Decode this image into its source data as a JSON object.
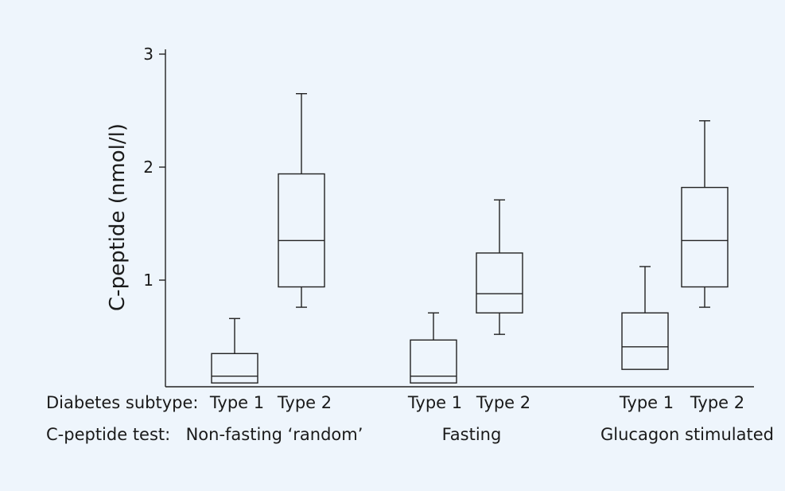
{
  "chart_data": {
    "type": "box",
    "ylabel": "C-peptide (nmol/l)",
    "ylim": [
      0,
      3
    ],
    "yticks": [
      1,
      2,
      3
    ],
    "grid": false,
    "row_headers": [
      "Diabetes subtype:",
      "C-peptide test:"
    ],
    "groups": [
      {
        "test": "Non-fasting ‘random’",
        "boxes": [
          {
            "subtype": "Type 1",
            "whisker_low": 0.09,
            "q1": 0.09,
            "median": 0.15,
            "q3": 0.35,
            "whisker_high": 0.66
          },
          {
            "subtype": "Type 2",
            "whisker_low": 0.76,
            "q1": 0.94,
            "median": 1.35,
            "q3": 1.94,
            "whisker_high": 2.65
          }
        ]
      },
      {
        "test": "Fasting",
        "boxes": [
          {
            "subtype": "Type 1",
            "whisker_low": 0.09,
            "q1": 0.09,
            "median": 0.15,
            "q3": 0.47,
            "whisker_high": 0.71
          },
          {
            "subtype": "Type 2",
            "whisker_low": 0.52,
            "q1": 0.71,
            "median": 0.88,
            "q3": 1.24,
            "whisker_high": 1.71
          }
        ]
      },
      {
        "test": "Glucagon stimulated",
        "boxes": [
          {
            "subtype": "Type 1",
            "whisker_low": 0.21,
            "q1": 0.21,
            "median": 0.41,
            "q3": 0.71,
            "whisker_high": 1.12
          },
          {
            "subtype": "Type 2",
            "whisker_low": 0.76,
            "q1": 0.94,
            "median": 1.35,
            "q3": 1.82,
            "whisker_high": 2.41
          }
        ]
      }
    ]
  }
}
